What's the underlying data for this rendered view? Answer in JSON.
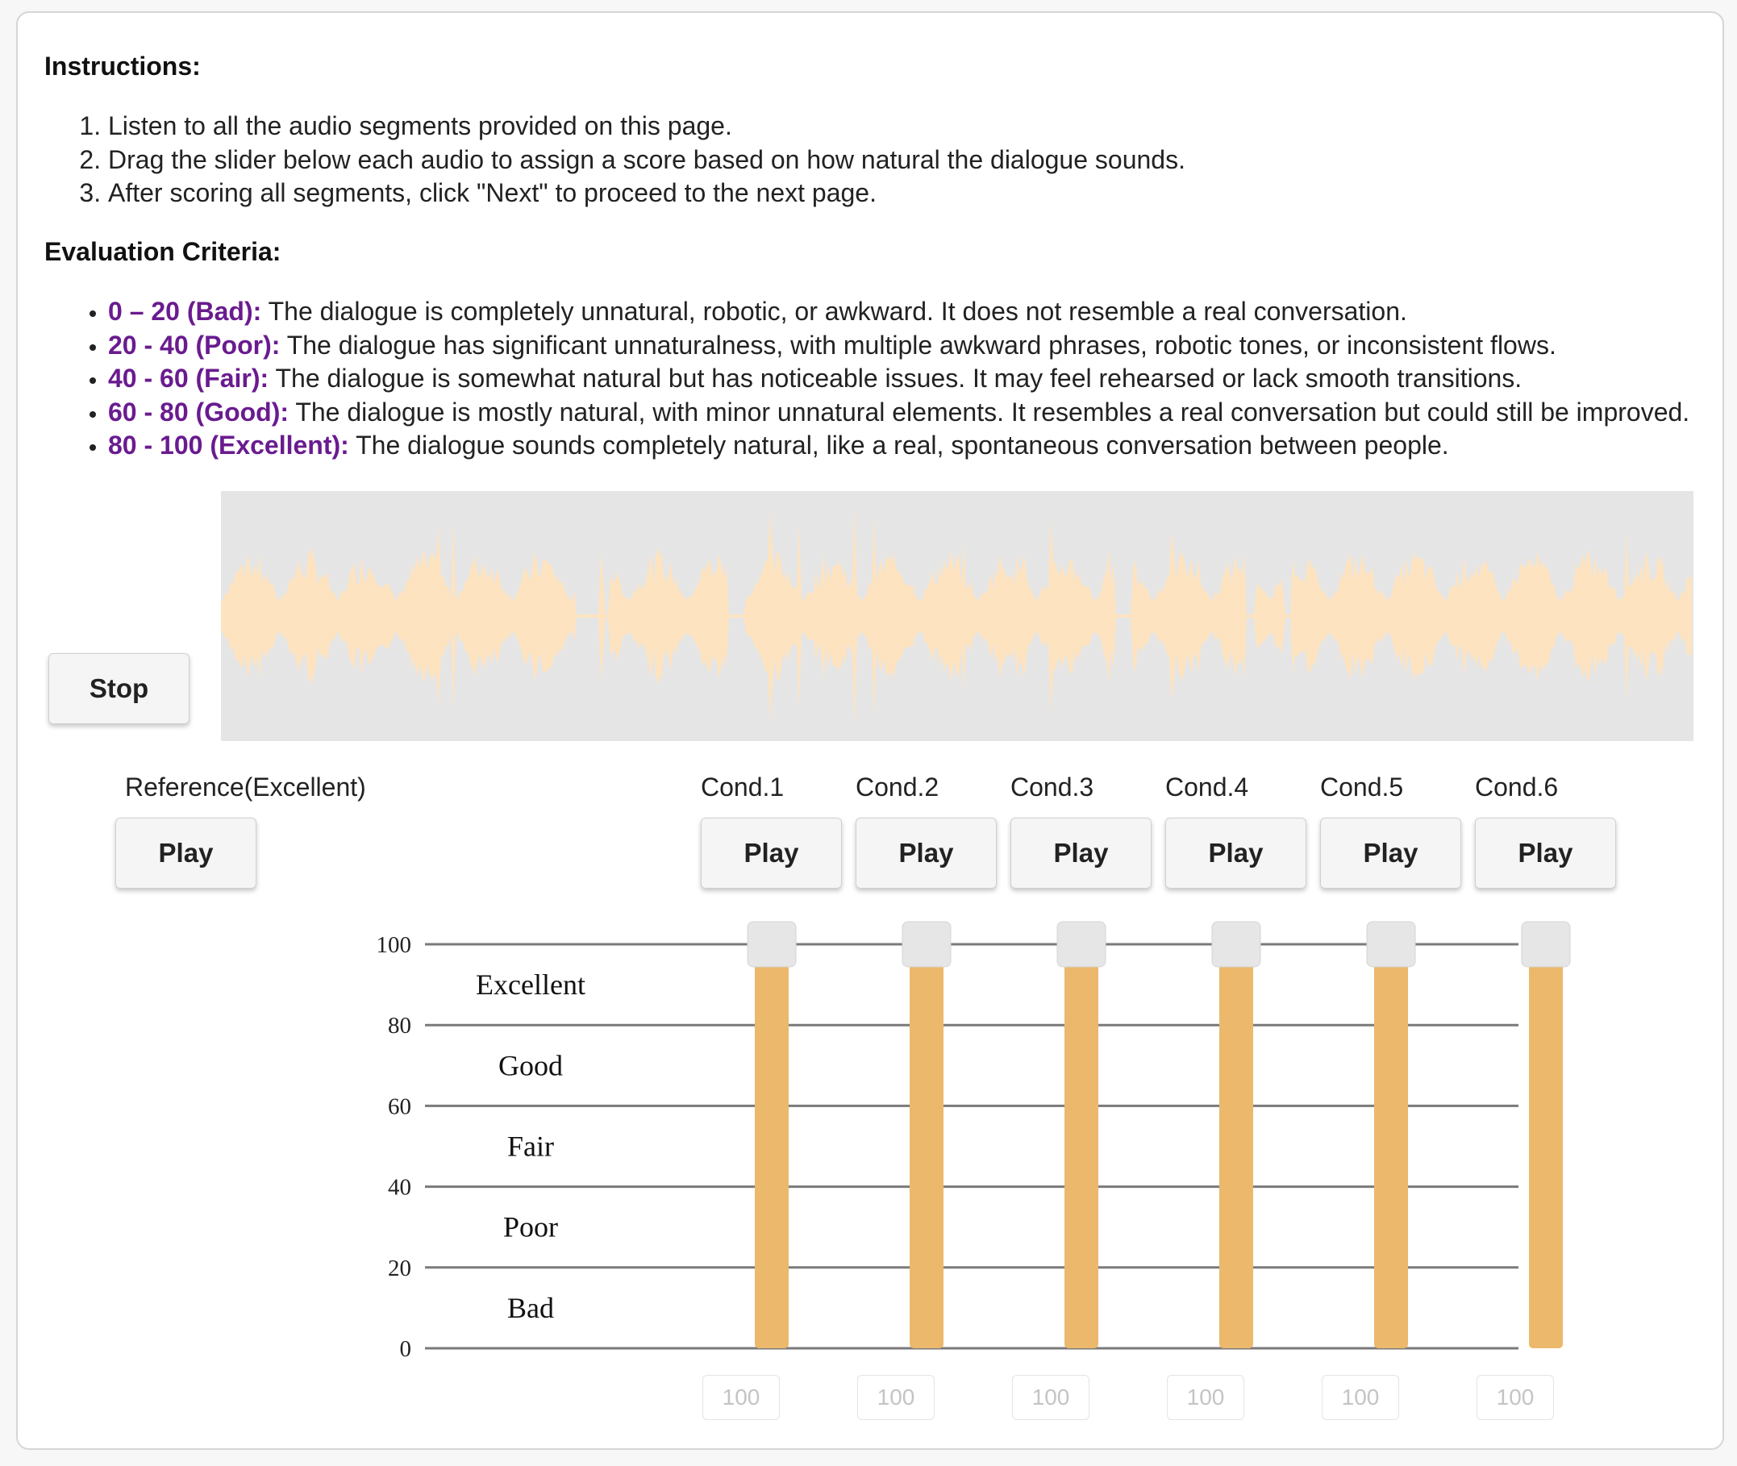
{
  "instructions": {
    "heading": "Instructions:",
    "steps": [
      "Listen to all the audio segments provided on this page.",
      "Drag the slider below each audio to assign a score based on how natural the dialogue sounds.",
      "After scoring all segments, click \"Next\" to proceed to the next page."
    ]
  },
  "criteria": {
    "heading": "Evaluation Criteria:",
    "items": [
      {
        "label": "0 – 20 (Bad):",
        "text": " The dialogue is completely unnatural, robotic, or awkward. It does not resemble a real conversation."
      },
      {
        "label": "20 - 40 (Poor):",
        "text": " The dialogue has significant unnaturalness, with multiple awkward phrases, robotic tones, or inconsistent flows."
      },
      {
        "label": "40 - 60 (Fair):",
        "text": " The dialogue is somewhat natural but has noticeable issues. It may feel rehearsed or lack smooth transitions."
      },
      {
        "label": "60 - 80 (Good):",
        "text": " The dialogue is mostly natural, with minor unnatural elements. It resembles a real conversation but could still be improved."
      },
      {
        "label": "80 - 100 (Excellent):",
        "text": " The dialogue sounds completely natural, like a real, spontaneous conversation between people."
      }
    ],
    "label_color": "#6a1b8f"
  },
  "player": {
    "stop_label": "Stop",
    "waveform_color": "#fde3c0",
    "waveform_bg": "#e5e5e5"
  },
  "reference": {
    "label": "Reference(Excellent)",
    "play_label": "Play"
  },
  "conditions": [
    {
      "label": "Cond.1",
      "play_label": "Play",
      "score": 100
    },
    {
      "label": "Cond.2",
      "play_label": "Play",
      "score": 100
    },
    {
      "label": "Cond.3",
      "play_label": "Play",
      "score": 100
    },
    {
      "label": "Cond.4",
      "play_label": "Play",
      "score": 100
    },
    {
      "label": "Cond.5",
      "play_label": "Play",
      "score": 100
    },
    {
      "label": "Cond.6",
      "play_label": "Play",
      "score": 100
    }
  ],
  "scale": {
    "ticks": [
      "100",
      "80",
      "60",
      "40",
      "20",
      "0"
    ],
    "bands": [
      "Excellent",
      "Good",
      "Fair",
      "Poor",
      "Bad"
    ],
    "min": 0,
    "max": 100,
    "fill_color": "#ebb86c"
  }
}
